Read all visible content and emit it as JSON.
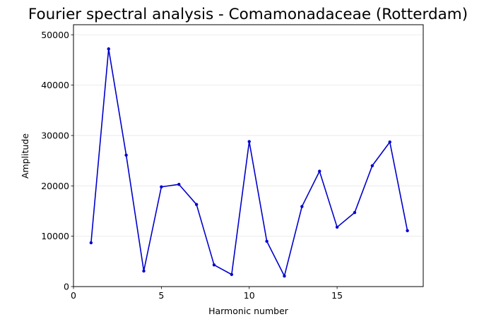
{
  "chart_data": {
    "type": "line",
    "title": "Fourier spectral analysis - Comamonadaceae (Rotterdam)",
    "xlabel": "Harmonic number",
    "ylabel": "Amplitude",
    "xlim": [
      0,
      19.9
    ],
    "ylim": [
      0,
      52000
    ],
    "xticks": [
      0,
      5,
      10,
      15
    ],
    "yticks": [
      0,
      10000,
      20000,
      30000,
      40000,
      50000
    ],
    "grid": "horizontal",
    "series": [
      {
        "name": "Amplitude",
        "color": "#0000cc",
        "marker": "circle",
        "x": [
          1,
          2,
          3,
          4,
          5,
          6,
          7,
          8,
          9,
          10,
          11,
          12,
          13,
          14,
          15,
          16,
          17,
          18,
          19
        ],
        "y": [
          8700,
          47200,
          26100,
          3100,
          19800,
          20300,
          16300,
          4300,
          2400,
          28800,
          9000,
          2100,
          15900,
          22900,
          11800,
          14700,
          24000,
          28700,
          11100
        ]
      }
    ]
  }
}
